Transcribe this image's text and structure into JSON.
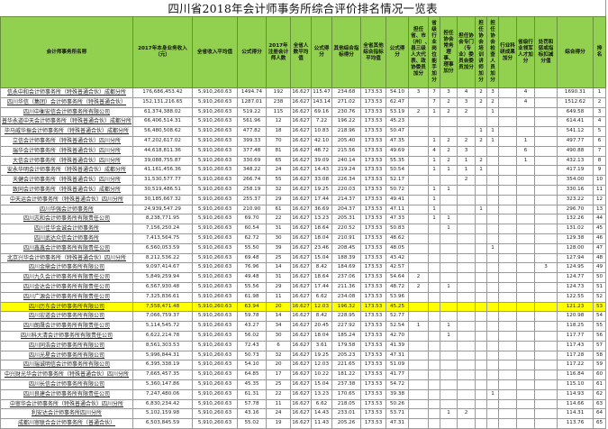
{
  "title": "四川省2018年会计师事务所综合评价排名情况一览表",
  "highlight_color": "#FFFF00",
  "header_color": "#92D050",
  "highlighted_rank": "53",
  "columns": [
    "会计师事务所名称",
    "2017年本身业务收入（元）",
    "全省收入平均值",
    "公式得分",
    "2017年注册会计师人数",
    "全省人数平均值",
    "公式得分",
    "其他综合指标得分",
    "全省其他综合指标平均值",
    "公式得分",
    "担任省、市（州）、县三级人大代表、政协委员加分",
    "省级行业岗位能手加分",
    "担任协会常务理事、理事加分",
    "担任协会专门（专业）委员会委员加分",
    "担任协会培训讲师加分",
    "担任协会检查人员加分",
    "行业科研成果加分",
    "省级行业领军人才加分",
    "处罚和惩戒指标扣减分值",
    "综合得分",
    "排名"
  ],
  "rows": [
    [
      "信永中和会计师事务所（特殊普通合伙）成都分所",
      "176,686,453.42",
      "5,910,260.63",
      "1494.74",
      "192",
      "16.627",
      "115.47",
      "234.68",
      "173.53",
      "54.10",
      "3",
      "7",
      "3",
      "4",
      "2",
      "3",
      "",
      "4",
      "",
      "1690.31",
      "1"
    ],
    [
      "四川华信（集团）会计师事务所（特殊普通合伙）",
      "152,131,216.65",
      "5,910,260.63",
      "1287.01",
      "238",
      "16.627",
      "143.14",
      "271.02",
      "173.53",
      "62.47",
      "",
      "7",
      "2",
      "3",
      "2",
      "2",
      "",
      "4",
      "",
      "1512.62",
      "2"
    ],
    [
      "四川中衡安信会计师事务所有限公司",
      "61,374,388.02",
      "5,910,260.63",
      "519.22",
      "115",
      "16.627",
      "69.16",
      "230.76",
      "173.53",
      "53.19",
      "2",
      "1",
      "2",
      "2",
      "",
      "1",
      "",
      "",
      "",
      "649.58",
      "3"
    ],
    [
      "普华永道中天会计师事务所（特殊普通合伙）成都分所",
      "66,406,514.31",
      "5,910,260.63",
      "561.96",
      "12",
      "16.627",
      "7.22",
      "196.22",
      "173.53",
      "45.23",
      "",
      "",
      "",
      "",
      "",
      "",
      "",
      "",
      "",
      "614.41",
      "4"
    ],
    [
      "毕马威华振会计师事务所（特殊普通合伙）成都分所",
      "56,480,508.62",
      "5,910,260.63",
      "477.82",
      "18",
      "16.627",
      "10.83",
      "218.96",
      "173.53",
      "50.47",
      "",
      "",
      "",
      "",
      "1",
      "1",
      "",
      "",
      "",
      "541.12",
      "5"
    ],
    [
      "立信会计师事务所（特殊普通合伙）四川分所",
      "47,202,617.02",
      "5,910,260.63",
      "399.33",
      "70",
      "16.627",
      "42.10",
      "205.40",
      "173.53",
      "47.35",
      "",
      "1",
      "2",
      "2",
      "2",
      "1",
      "",
      "1",
      "",
      "497.77",
      "6"
    ],
    [
      "瑞华会计师事务所（特殊普通合伙）四川分所",
      "44,618,811.36",
      "5,910,260.63",
      "377.48",
      "81",
      "16.627",
      "48.72",
      "215.56",
      "173.53",
      "49.69",
      "",
      "4",
      "2",
      "3",
      "",
      "",
      "",
      "6",
      "",
      "490.88",
      "7"
    ],
    [
      "大信会计师事务所（特殊普通合伙）四川分所",
      "39,088,755.87",
      "5,910,260.63",
      "330.69",
      "65",
      "16.627",
      "39.09",
      "240.14",
      "173.53",
      "55.35",
      "",
      "1",
      "2",
      "1",
      "2",
      "",
      "",
      "1",
      "",
      "432.13",
      "8"
    ],
    [
      "安永华明会计师事务所（特殊普通合伙）成都分所",
      "41,161,456.36",
      "5,910,260.63",
      "348.22",
      "24",
      "16.627",
      "14.43",
      "219.24",
      "173.53",
      "50.54",
      "",
      "1",
      "1",
      "1",
      "1",
      "",
      "",
      "",
      "",
      "417.19",
      "9"
    ],
    [
      "天健会计师事务所（特殊普通合伙）四川分所",
      "31,530,577.77",
      "5,910,260.63",
      "266.74",
      "55",
      "16.627",
      "33.08",
      "226.34",
      "173.53",
      "52.17",
      "",
      "",
      "",
      "2",
      "",
      "",
      "",
      "",
      "",
      "354.00",
      "10"
    ],
    [
      "致同会计师事务所（特殊普通合伙）成都分所",
      "30,519,486.51",
      "5,910,260.63",
      "258.19",
      "32",
      "16.627",
      "19.25",
      "220.03",
      "173.53",
      "50.72",
      "",
      "1",
      "1",
      "",
      "",
      "",
      "",
      "",
      "",
      "330.16",
      "11"
    ],
    [
      "中天运会计师事务所（特殊普通合伙）四川分所",
      "30,185,667.32",
      "5,910,260.63",
      "255.37",
      "29",
      "16.627",
      "17.44",
      "214.37",
      "173.53",
      "49.41",
      "",
      "1",
      "",
      "",
      "",
      "",
      "",
      "",
      "",
      "323.22",
      "12"
    ],
    [
      "四川华强会计师事务所",
      "24,939,547.29",
      "5,910,260.63",
      "210.90",
      "61",
      "16.627",
      "36.69",
      "204.37",
      "173.53",
      "47.11",
      "",
      "1",
      "",
      "",
      "1",
      "",
      "",
      "",
      "",
      "296.70",
      "13"
    ],
    [
      "四川志和会计师事务所有限责任公司",
      "8,238,771.95",
      "5,910,260.63",
      "69.70",
      "22",
      "16.627",
      "13.23",
      "205.31",
      "173.53",
      "47.33",
      "",
      "1",
      "1",
      "",
      "",
      "",
      "",
      "",
      "",
      "132.26",
      "44"
    ],
    [
      "四川佳华金诚会计师事务所",
      "7,156,250.24",
      "5,910,260.63",
      "60.54",
      "31",
      "16.627",
      "18.64",
      "220.52",
      "173.53",
      "50.83",
      "",
      "",
      "1",
      "",
      "",
      "",
      "",
      "",
      "",
      "131.02",
      "45"
    ],
    [
      "四川武达众信会计师事务所",
      "7,413,564.75",
      "5,910,260.63",
      "62.72",
      "30",
      "16.627",
      "18.04",
      "210.91",
      "173.53",
      "48.62",
      "",
      "",
      "",
      "",
      "",
      "",
      "",
      "",
      "",
      "129.38",
      "46"
    ],
    [
      "四川鑫鑫会计师事务所有限责任公司",
      "6,560,053.59",
      "5,910,260.63",
      "55.50",
      "39",
      "16.627",
      "23.46",
      "208.45",
      "173.53",
      "48.05",
      "",
      "",
      "",
      "",
      "",
      "1",
      "",
      "",
      "",
      "128.00",
      "47"
    ],
    [
      "北京兴华会计师事务所（特殊普通合伙）四川分所",
      "8,212,536.22",
      "5,910,260.63",
      "69.48",
      "25",
      "16.627",
      "15.04",
      "188.39",
      "173.53",
      "43.42",
      "",
      "",
      "",
      "",
      "",
      "",
      "",
      "",
      "",
      "127.94",
      "48"
    ],
    [
      "四川金鼎会计师事务所有限公司",
      "9,097,414.67",
      "5,910,260.63",
      "76.96",
      "14",
      "16.627",
      "8.42",
      "184.69",
      "173.53",
      "42.57",
      "",
      "",
      "",
      "",
      "",
      "",
      "",
      "",
      "3",
      "124.95",
      "49"
    ],
    [
      "四川九久会计师事务所有限责任公司",
      "5,849,259.94",
      "5,910,260.63",
      "49.48",
      "31",
      "16.627",
      "18.64",
      "237.06",
      "173.53",
      "54.64",
      "2",
      "",
      "",
      "",
      "",
      "",
      "",
      "",
      "",
      "124.77",
      "50"
    ],
    [
      "四川金达会计师事务所有限责任公司",
      "6,567,930.48",
      "5,910,260.63",
      "55.56",
      "29",
      "16.627",
      "17.44",
      "211.36",
      "173.53",
      "48.72",
      "2",
      "",
      "1",
      "",
      "",
      "",
      "",
      "",
      "",
      "124.73",
      "51"
    ],
    [
      "四川广源会计师事务所有限责任公司",
      "7,325,836.61",
      "5,910,260.63",
      "61.98",
      "11",
      "16.627",
      "6.62",
      "234.08",
      "173.53",
      "53.96",
      "",
      "",
      "",
      "",
      "",
      "",
      "",
      "",
      "",
      "122.55",
      "52"
    ],
    [
      "四川历东会计师事务所有限公司",
      "7,558,471.48",
      "5,910,260.63",
      "63.94",
      "20",
      "16.627",
      "12.03",
      "196.32",
      "173.53",
      "45.25",
      "",
      "",
      "",
      "",
      "",
      "",
      "",
      "",
      "",
      "121.23",
      "53"
    ],
    [
      "四川宏道会计师事务所有限公司",
      "7,066,759.37",
      "5,910,260.63",
      "59.78",
      "14",
      "16.627",
      "8.42",
      "228.95",
      "173.53",
      "52.77",
      "",
      "",
      "",
      "",
      "",
      "",
      "",
      "",
      "",
      "120.98",
      "54"
    ],
    [
      "四川朗晟会计师事务所有限责任公司",
      "5,114,545.72",
      "5,910,260.63",
      "43.27",
      "34",
      "16.627",
      "20.45",
      "227.92",
      "173.53",
      "52.54",
      "1",
      "",
      "1",
      "",
      "",
      "",
      "",
      "",
      "",
      "118.25",
      "55"
    ],
    [
      "四川科大清会计师事务所有限责任公司",
      "6,622,214.78",
      "5,910,260.63",
      "56.02",
      "30",
      "16.627",
      "18.04",
      "185.24",
      "173.53",
      "42.70",
      "",
      "",
      "1",
      "",
      "",
      "",
      "",
      "",
      "",
      "117.77",
      "56"
    ],
    [
      "四川同浩会计师事务所有限公司",
      "8,561,303.53",
      "5,910,260.63",
      "72.43",
      "6",
      "16.627",
      "3.61",
      "179.58",
      "173.53",
      "41.39",
      "",
      "",
      "",
      "",
      "",
      "",
      "",
      "",
      "",
      "117.43",
      "57"
    ],
    [
      "四川光星会计师事务所有限公司",
      "5,996,844.31",
      "5,910,260.63",
      "50.73",
      "32",
      "16.627",
      "19.25",
      "205.23",
      "173.53",
      "47.31",
      "",
      "",
      "",
      "",
      "",
      "",
      "",
      "",
      "",
      "117.28",
      "58"
    ],
    [
      "四川瑞诚明信会计师事务所有限公司",
      "6,395,338.19",
      "5,910,260.63",
      "54.10",
      "20",
      "16.627",
      "12.03",
      "221.65",
      "173.53",
      "51.09",
      "",
      "",
      "",
      "",
      "",
      "",
      "",
      "",
      "",
      "117.22",
      "59"
    ],
    [
      "中兴财光华会计师事务所（特殊普通合伙）四川分所",
      "7,665,457.35",
      "5,910,260.63",
      "64.85",
      "17",
      "16.627",
      "10.22",
      "181.22",
      "173.53",
      "41.77",
      "",
      "",
      "",
      "",
      "",
      "",
      "",
      "",
      "",
      "116.84",
      "60"
    ],
    [
      "四川长信会计师事务所有限公司",
      "5,360,147.86",
      "5,910,260.63",
      "45.35",
      "25",
      "16.627",
      "15.04",
      "237.38",
      "173.53",
      "54.72",
      "",
      "",
      "",
      "",
      "",
      "",
      "",
      "",
      "",
      "115.10",
      "61"
    ],
    [
      "四川良建会计师事务所有限责任公司",
      "7,247,480.06",
      "5,910,260.63",
      "61.31",
      "22",
      "16.627",
      "13.23",
      "170.65",
      "173.53",
      "39.38",
      "",
      "",
      "",
      "",
      "",
      "1",
      "",
      "",
      "",
      "114.93",
      "62"
    ],
    [
      "中审华会计师事务所（特殊普通合伙）四川分所",
      "6,830,234.42",
      "5,910,260.63",
      "57.78",
      "11",
      "16.627",
      "6.62",
      "218.05",
      "173.53",
      "50.26",
      "",
      "",
      "",
      "",
      "",
      "",
      "",
      "",
      "",
      "114.66",
      "63"
    ],
    [
      "利安达会计师事务所四川分所",
      "5,102,159.98",
      "5,910,260.63",
      "43.16",
      "24",
      "16.627",
      "14.43",
      "233.01",
      "173.53",
      "53.71",
      "",
      "",
      "1",
      "2",
      "",
      "",
      "",
      "",
      "",
      "114.31",
      "64"
    ],
    [
      "成都川审联合会计师事务所（普通合伙）",
      "6,503,845.59",
      "5,910,260.63",
      "55.02",
      "19",
      "16.627",
      "11.43",
      "205.26",
      "173.53",
      "47.31",
      "",
      "",
      "",
      "",
      "",
      "",
      "",
      "",
      "",
      "113.76",
      "65"
    ]
  ]
}
